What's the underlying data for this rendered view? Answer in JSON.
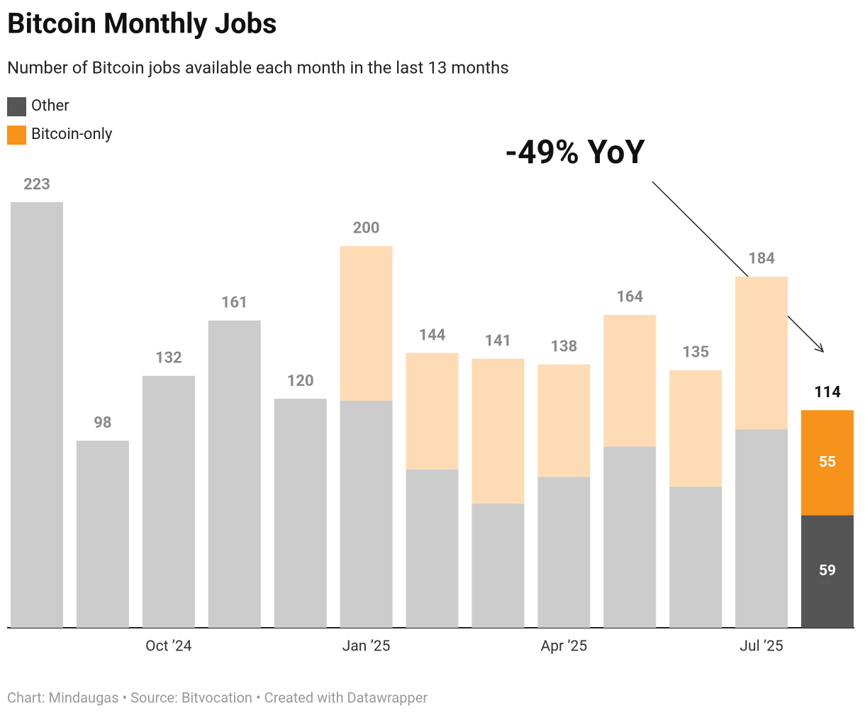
{
  "chart_data": {
    "type": "stacked-bar",
    "title": "Bitcoin Monthly Jobs",
    "subtitle": "Number of Bitcoin jobs available each month in the last 13 months",
    "categories": [
      null,
      null,
      "Oct ’24",
      null,
      null,
      "Jan ’25",
      null,
      null,
      "Apr ’25",
      null,
      null,
      "Jul ’25",
      null
    ],
    "series": [
      {
        "name": "Other",
        "color": "#555555",
        "faded_color": "#cccccc",
        "values": [
          223,
          98,
          132,
          161,
          120,
          119,
          83,
          65,
          79,
          95,
          74,
          104,
          59
        ]
      },
      {
        "name": "Bitcoin-only",
        "color": "#f7931a",
        "faded_color": "#fddcb5",
        "values": [
          null,
          null,
          null,
          null,
          null,
          81,
          61,
          76,
          59,
          69,
          61,
          80,
          55
        ]
      }
    ],
    "totals": [
      223,
      98,
      132,
      161,
      120,
      200,
      144,
      141,
      138,
      164,
      135,
      184,
      114
    ],
    "ylim": [
      0,
      223
    ],
    "annotation": "-49% YoY",
    "source": "Chart: Mindaugas • Source: Bitvocation • Created with Datawrapper"
  }
}
